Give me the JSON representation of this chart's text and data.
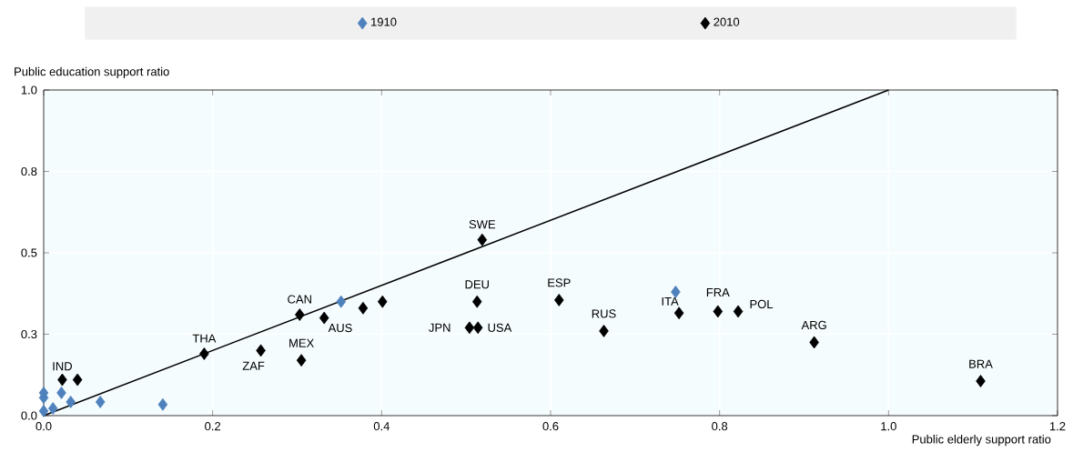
{
  "chart_data": {
    "type": "scatter",
    "xlabel": "Public elderly support ratio",
    "ylabel": "Public education support ratio",
    "series": [
      {
        "name": "1910",
        "color": "#4f81bd",
        "x": [
          0.0,
          0.0,
          0.0,
          0.011,
          0.021,
          0.032,
          0.067,
          0.141,
          0.352,
          0.748
        ],
        "values": [
          0.07,
          0.055,
          0.014,
          0.022,
          0.07,
          0.042,
          0.042,
          0.034,
          0.35,
          0.38
        ]
      },
      {
        "name": "2010",
        "color": "#000000",
        "x": [
          0.022,
          0.04,
          0.19,
          0.257,
          0.305,
          0.303,
          0.332,
          0.378,
          0.401,
          0.519,
          0.513,
          0.504,
          0.514,
          0.61,
          0.663,
          0.752,
          0.798,
          0.822,
          0.912,
          1.109
        ],
        "values": [
          0.11,
          0.11,
          0.19,
          0.2,
          0.17,
          0.31,
          0.3,
          0.33,
          0.35,
          0.54,
          0.35,
          0.27,
          0.27,
          0.355,
          0.26,
          0.315,
          0.32,
          0.32,
          0.225,
          0.106
        ]
      },
      {
        "type": "line",
        "marker": "none",
        "color": "#000000",
        "x": [
          0,
          1.0
        ],
        "values": [
          0,
          1.0
        ]
      }
    ],
    "xlim": [
      0,
      1.2
    ],
    "ylim": [
      0,
      1.0
    ],
    "xticks": [
      {
        "value": 0,
        "label": "0.0"
      },
      {
        "value": 0.2,
        "label": "0.2"
      },
      {
        "value": 0.4,
        "label": "0.4"
      },
      {
        "value": 0.6,
        "label": "0.6"
      },
      {
        "value": 0.8,
        "label": "0.8"
      },
      {
        "value": 1.0,
        "label": "1.0"
      },
      {
        "value": 1.2,
        "label": "1.2"
      }
    ],
    "yticks": [
      {
        "value": 0,
        "label": "0.0"
      },
      {
        "value": 0.25,
        "label": "0.3"
      },
      {
        "value": 0.5,
        "label": "0.5"
      },
      {
        "value": 0.75,
        "label": "0.8"
      },
      {
        "value": 1.0,
        "label": "1.0"
      }
    ],
    "annotations": [
      {
        "text": "IND",
        "x": 0.022,
        "y": 0.11
      },
      {
        "text": "THA",
        "x": 0.19,
        "y": 0.19
      },
      {
        "text": "ZAF",
        "x": 0.257,
        "y": 0.2
      },
      {
        "text": "MEX",
        "x": 0.305,
        "y": 0.17
      },
      {
        "text": "CAN",
        "x": 0.303,
        "y": 0.31
      },
      {
        "text": "AUS",
        "x": 0.332,
        "y": 0.3
      },
      {
        "text": "SWE",
        "x": 0.519,
        "y": 0.54
      },
      {
        "text": "DEU",
        "x": 0.513,
        "y": 0.35
      },
      {
        "text": "JPN",
        "x": 0.504,
        "y": 0.27
      },
      {
        "text": "USA",
        "x": 0.514,
        "y": 0.27
      },
      {
        "text": "ESP",
        "x": 0.61,
        "y": 0.355
      },
      {
        "text": "RUS",
        "x": 0.663,
        "y": 0.26
      },
      {
        "text": "ITA",
        "x": 0.752,
        "y": 0.315
      },
      {
        "text": "FRA",
        "x": 0.798,
        "y": 0.32
      },
      {
        "text": "POL",
        "x": 0.822,
        "y": 0.32
      },
      {
        "text": "ARG",
        "x": 0.912,
        "y": 0.225
      },
      {
        "text": "BRA",
        "x": 1.109,
        "y": 0.106
      }
    ],
    "grid": true,
    "legend": "top",
    "marker": "diamond"
  }
}
